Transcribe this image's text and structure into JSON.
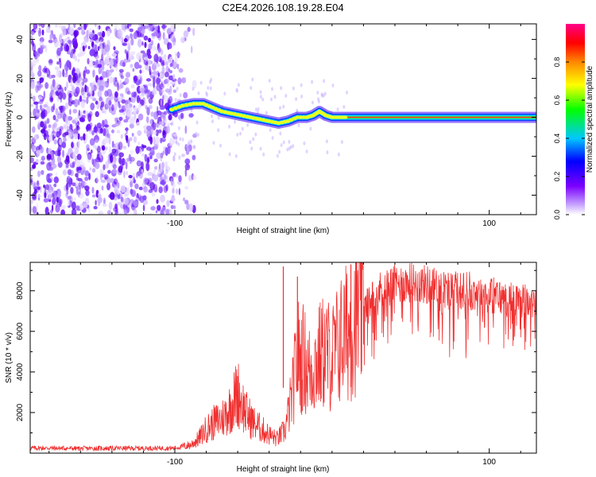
{
  "page_title": "C2E4.2026.108.19.28.E04",
  "chart_data": [
    {
      "type": "heatmap",
      "title": "C2E4.2026.108.19.28.E04",
      "xlabel": "Height of straight line (km)",
      "ylabel": "Frequency (Hz)",
      "xlim": [
        -192,
        130
      ],
      "ylim": [
        -50,
        48
      ],
      "xticks": [
        -100,
        100
      ],
      "yticks": [
        -40,
        -20,
        0,
        20,
        40
      ],
      "colorbar": {
        "label": "Normalized spectral amplitude",
        "range": [
          0,
          1
        ],
        "ticks": [
          0.0,
          0.2,
          0.4,
          0.6,
          0.8
        ],
        "colors": [
          "#ffffff",
          "#7b00ff",
          "#0000ff",
          "#00d0ff",
          "#00ff00",
          "#ffff00",
          "#ff8800",
          "#ff0000",
          "#ff0088"
        ]
      },
      "ridge": {
        "description_points_km": [
          -102,
          -95,
          -88,
          -82,
          -76,
          -70,
          -64,
          -58,
          -52,
          -46,
          -40,
          -34,
          -28,
          -22,
          -16,
          -12,
          -8,
          -4,
          0,
          5,
          10,
          130
        ],
        "frequency_hz": [
          4,
          6,
          7,
          7,
          5,
          3,
          2,
          1,
          0,
          -1,
          -2,
          -3,
          -2,
          0,
          0,
          1,
          3,
          1,
          0,
          0,
          0,
          0
        ]
      },
      "noise_region_km": [
        -192,
        -100
      ]
    },
    {
      "type": "line",
      "xlabel": "Height of straight line (km)",
      "ylabel": "SNR (10 * v/v)",
      "xlim": [
        -192,
        130
      ],
      "ylim": [
        0,
        9400
      ],
      "xticks": [
        -100,
        100
      ],
      "yticks": [
        2000,
        4000,
        6000,
        8000
      ],
      "series": [
        {
          "name": "SNR",
          "color": "#f03030",
          "x": [
            -192,
            -180,
            -160,
            -140,
            -120,
            -100,
            -90,
            -85,
            -80,
            -75,
            -70,
            -65,
            -60,
            -55,
            -50,
            -45,
            -40,
            -35,
            -30,
            -25,
            -22,
            -20,
            -18,
            -15,
            -10,
            -5,
            0,
            5,
            10,
            13,
            15,
            20,
            25,
            30,
            35,
            40,
            50,
            60,
            70,
            80,
            90,
            100,
            110,
            120,
            130
          ],
          "values": [
            250,
            250,
            230,
            240,
            240,
            250,
            400,
            700,
            1200,
            1500,
            1700,
            2200,
            3000,
            2000,
            1500,
            1200,
            900,
            700,
            1100,
            3000,
            5000,
            4500,
            4700,
            4000,
            4500,
            5000,
            4700,
            5500,
            6000,
            6300,
            6800,
            7000,
            7600,
            8000,
            8200,
            8300,
            8400,
            8300,
            8100,
            8000,
            8000,
            7800,
            7600,
            7500,
            7500
          ]
        }
      ],
      "peaks": [
        {
          "x": -31,
          "value": 9200
        },
        {
          "x": -22,
          "value": 8700
        },
        {
          "x": 12,
          "value": 9300
        },
        {
          "x": -60,
          "value": 3800
        }
      ]
    }
  ]
}
